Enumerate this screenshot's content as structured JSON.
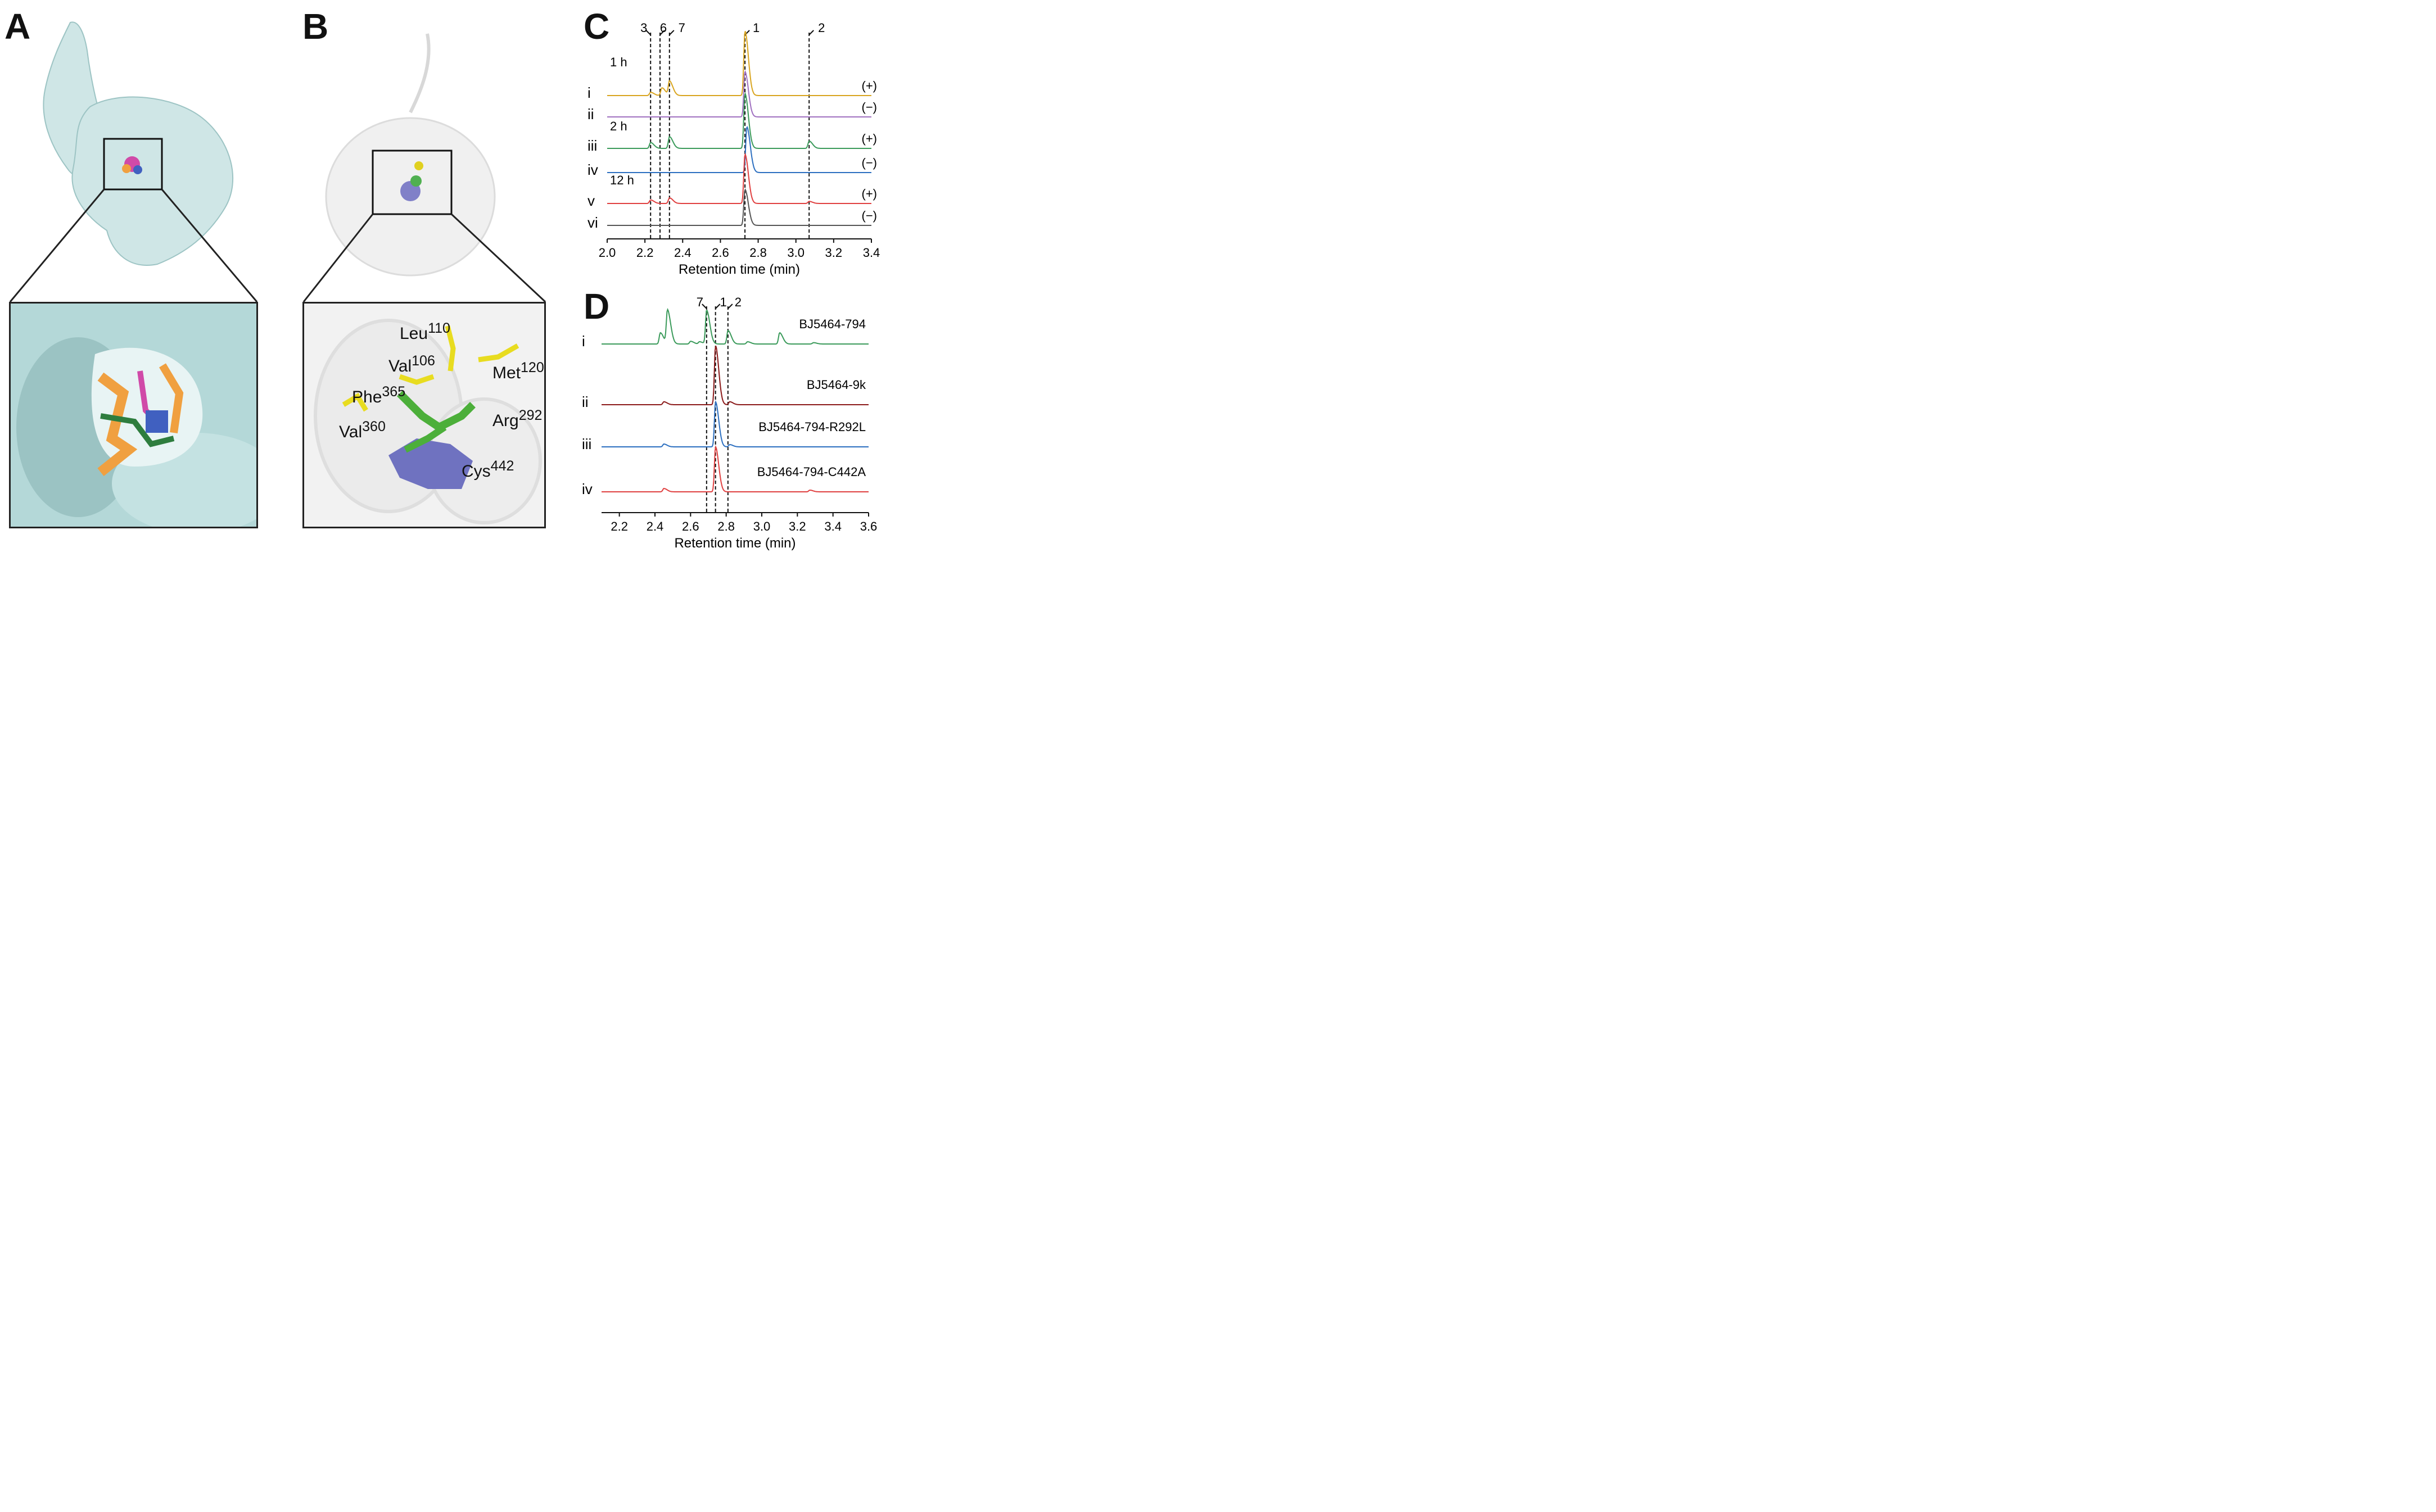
{
  "panels": {
    "A": {
      "label": "A"
    },
    "B": {
      "label": "B",
      "residues": [
        {
          "name": "Leu",
          "num": "110"
        },
        {
          "name": "Val",
          "num": "106"
        },
        {
          "name": "Met",
          "num": "120"
        },
        {
          "name": "Phe",
          "num": "365"
        },
        {
          "name": "Val",
          "num": "360"
        },
        {
          "name": "Arg",
          "num": "292"
        },
        {
          "name": "Cys",
          "num": "442"
        }
      ]
    },
    "C": {
      "label": "C",
      "times": [
        "1 h",
        "2 h",
        "12 h"
      ],
      "peak_labels": [
        "3",
        "6",
        "7",
        "1",
        "2"
      ],
      "trace_labels": [
        "i",
        "ii",
        "iii",
        "iv",
        "v",
        "vi"
      ],
      "trace_signs": [
        "(+)",
        "(−)",
        "(+)",
        "(−)",
        "(+)",
        "(−)"
      ],
      "xlabel": "Retention time (min)",
      "ticks": [
        "2.0",
        "2.2",
        "2.4",
        "2.6",
        "2.8",
        "3.0",
        "3.2",
        "3.4"
      ]
    },
    "D": {
      "label": "D",
      "peak_labels": [
        "7",
        "1",
        "2"
      ],
      "trace_labels": [
        "i",
        "ii",
        "iii",
        "iv"
      ],
      "strains": [
        "BJ5464-794",
        "BJ5464-9k",
        "BJ5464-794-R292L",
        "BJ5464-794-C442A"
      ],
      "xlabel": "Retention time (min)",
      "ticks": [
        "2.2",
        "2.4",
        "2.6",
        "2.8",
        "3.0",
        "3.2",
        "3.4",
        "3.6"
      ]
    }
  },
  "chart_data": [
    {
      "type": "line",
      "panel": "C",
      "xlabel": "Retention time (min)",
      "xlim": [
        2.0,
        3.4
      ],
      "marker_lines_x": [
        2.23,
        2.28,
        2.33,
        2.73,
        3.07
      ],
      "series": [
        {
          "name": "i",
          "color": "#d9a520",
          "peaks": [
            [
              2.23,
              0.05
            ],
            [
              2.29,
              0.12
            ],
            [
              2.33,
              0.22
            ],
            [
              2.73,
              1.0
            ]
          ]
        },
        {
          "name": "ii",
          "color": "#a070c0",
          "peaks": [
            [
              2.73,
              0.72
            ]
          ]
        },
        {
          "name": "iii",
          "color": "#3a9a5a",
          "peaks": [
            [
              2.23,
              0.08
            ],
            [
              2.33,
              0.16
            ],
            [
              2.73,
              0.75
            ],
            [
              3.07,
              0.1
            ]
          ]
        },
        {
          "name": "iv",
          "color": "#2c6fc0",
          "peaks": [
            [
              2.74,
              0.65
            ]
          ]
        },
        {
          "name": "v",
          "color": "#e04040",
          "peaks": [
            [
              2.23,
              0.05
            ],
            [
              2.33,
              0.08
            ],
            [
              2.73,
              0.7
            ],
            [
              3.07,
              0.03
            ]
          ]
        },
        {
          "name": "vi",
          "color": "#555555",
          "peaks": [
            [
              2.73,
              0.58
            ]
          ]
        }
      ]
    },
    {
      "type": "line",
      "panel": "D",
      "xlabel": "Retention time (min)",
      "xlim": [
        2.1,
        3.6
      ],
      "marker_lines_x": [
        2.69,
        2.74,
        2.81
      ],
      "series": [
        {
          "name": "BJ5464-794",
          "color": "#3a9a5a",
          "peaks": [
            [
              2.43,
              0.25
            ],
            [
              2.47,
              0.75
            ],
            [
              2.6,
              0.06
            ],
            [
              2.65,
              0.05
            ],
            [
              2.69,
              0.75
            ],
            [
              2.81,
              0.3
            ],
            [
              2.92,
              0.05
            ],
            [
              3.1,
              0.25
            ],
            [
              3.29,
              0.03
            ]
          ]
        },
        {
          "name": "BJ5464-9k",
          "color": "#8b1a1a",
          "peaks": [
            [
              2.45,
              0.05
            ],
            [
              2.74,
              1.0
            ],
            [
              2.82,
              0.05
            ]
          ]
        },
        {
          "name": "BJ5464-794-R292L",
          "color": "#2c6fc0",
          "peaks": [
            [
              2.45,
              0.05
            ],
            [
              2.74,
              0.8
            ],
            [
              2.82,
              0.04
            ]
          ]
        },
        {
          "name": "BJ5464-794-C442A",
          "color": "#e04040",
          "peaks": [
            [
              2.45,
              0.06
            ],
            [
              2.74,
              0.8
            ],
            [
              3.27,
              0.03
            ]
          ]
        }
      ]
    }
  ]
}
